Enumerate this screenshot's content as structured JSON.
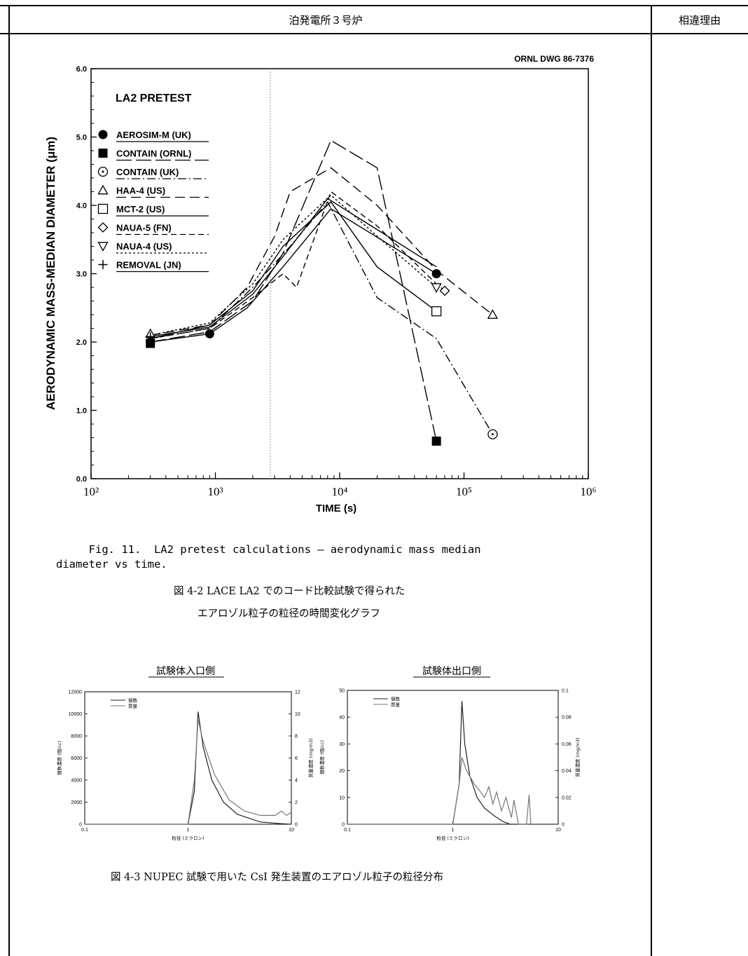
{
  "header": {
    "title": "泊発電所３号炉",
    "reason": "相違理由"
  },
  "fig1": {
    "dwg": "ORNL DWG 86-7376",
    "chart_title": "LA2 PRETEST",
    "ylabel": "AERODYNAMIC MASS-MEDIAN DIAMETER (μm)",
    "xlabel": "TIME (s)",
    "yticks": [
      "0.0",
      "1.0",
      "2.0",
      "3.0",
      "4.0",
      "5.0",
      "6.0"
    ],
    "xticks": [
      "10²",
      "10³",
      "10⁴",
      "10⁵",
      "10⁶"
    ],
    "caption_en_1": "     Fig. 11.  LA2 pretest calculations — aerodynamic mass median",
    "caption_en_2": "diameter vs time.",
    "caption_jp_1": "図 4-2  LACE LA2 でのコード比較試験で得られた",
    "caption_jp_2": "エアロゾル粒子の粒径の時間変化グラフ"
  },
  "fig2": {
    "left_title": "試験体入口側",
    "right_title": "試験体出口側",
    "caption": "図 4-3  NUPEC 試験で用いた CsI 発生装置のエアロゾル粒子の粒径分布"
  },
  "chart_data": [
    {
      "type": "line",
      "title": "LA2 PRETEST",
      "xlabel": "TIME (s)",
      "ylabel": "AERODYNAMIC MASS-MEDIAN DIAMETER (μm)",
      "xscale": "log",
      "xlim": [
        100,
        1000000
      ],
      "ylim": [
        0,
        6
      ],
      "legend": "top-left",
      "series": [
        {
          "name": "AEROSIM-M (UK)",
          "marker": "filled-circle",
          "dash": "",
          "x": [
            300,
            900,
            1800,
            3500,
            8500,
            60000
          ],
          "y": [
            2.0,
            2.12,
            2.5,
            3.1,
            3.95,
            3.0
          ]
        },
        {
          "name": "CONTAIN (ORNL)",
          "marker": "filled-square",
          "dash": "22 6",
          "x": [
            300,
            900,
            2000,
            3500,
            8500,
            20000,
            60000
          ],
          "y": [
            2.0,
            2.15,
            2.6,
            3.3,
            4.95,
            4.55,
            0.55
          ]
        },
        {
          "name": "CONTAIN (UK)",
          "marker": "open-circle",
          "dash": "12 4 2 4",
          "x": [
            300,
            900,
            2000,
            4000,
            8000,
            20000,
            60000,
            170000
          ],
          "y": [
            2.05,
            2.2,
            2.8,
            3.4,
            4.05,
            2.65,
            2.05,
            0.65
          ]
        },
        {
          "name": "HAA-4 (US)",
          "marker": "open-triangle",
          "dash": "14 7",
          "x": [
            300,
            900,
            1800,
            3000,
            4000,
            8500,
            20000,
            60000,
            170000
          ],
          "y": [
            2.1,
            2.25,
            2.8,
            3.55,
            4.2,
            4.55,
            4.0,
            3.05,
            2.4
          ]
        },
        {
          "name": "MCT-2 (US)",
          "marker": "open-square",
          "dash": "",
          "x": [
            300,
            900,
            2000,
            3500,
            8500,
            20000,
            60000
          ],
          "y": [
            2.05,
            2.25,
            2.75,
            3.4,
            4.05,
            3.1,
            2.45
          ]
        },
        {
          "name": "NAUA-5 (FN)",
          "marker": "open-diamond",
          "dash": "8 5",
          "x": [
            300,
            900,
            2000,
            3500,
            4500,
            8500,
            20000,
            60000,
            70000
          ],
          "y": [
            2.05,
            2.2,
            2.65,
            3.0,
            2.8,
            4.2,
            3.7,
            2.85,
            2.75
          ]
        },
        {
          "name": "NAUA-4 (US)",
          "marker": "open-triangle-down",
          "dash": "3 3",
          "x": [
            300,
            900,
            2000,
            3500,
            8500,
            20000,
            60000
          ],
          "y": [
            2.1,
            2.28,
            2.85,
            3.5,
            4.15,
            3.55,
            2.8
          ]
        },
        {
          "name": "REMOVAL (JN)",
          "marker": "plus",
          "dash": "",
          "x": [
            300,
            900,
            2000,
            3500,
            8000,
            60000
          ],
          "y": [
            2.08,
            2.22,
            2.7,
            3.25,
            4.1,
            3.1
          ]
        }
      ]
    },
    {
      "type": "line",
      "title": "試験体入口側",
      "xlabel": "粒径 (ミクロン)",
      "ylabel": "個数濃度 (個/cc)",
      "y2label": "質量濃度 (mg/m3)",
      "xscale": "log",
      "xlim": [
        0.1,
        10
      ],
      "ylim": [
        0,
        12000
      ],
      "y2lim": [
        0,
        12
      ],
      "yticks": [
        "0",
        "2000",
        "4000",
        "6000",
        "8000",
        "10000",
        "12000"
      ],
      "y2ticks": [
        "0",
        "2",
        "4",
        "6",
        "8",
        "10",
        "12"
      ],
      "xticks": [
        "0.1",
        "1",
        "10"
      ],
      "legend": "top-left",
      "series": [
        {
          "name": "個数",
          "axis": "left",
          "x": [
            0.1,
            1.0,
            1.15,
            1.25,
            1.4,
            1.7,
            2.2,
            3.0,
            5.0,
            8.0,
            10.0
          ],
          "y": [
            0,
            0,
            3000,
            10200,
            7000,
            4000,
            2000,
            900,
            200,
            50,
            0
          ]
        },
        {
          "name": "質量",
          "axis": "right",
          "x": [
            0.1,
            1.0,
            1.15,
            1.25,
            1.4,
            1.8,
            2.5,
            3.5,
            5.0,
            7.0,
            8.0,
            9.0,
            10.0
          ],
          "y": [
            0,
            0,
            4,
            9.5,
            7.5,
            4.5,
            2.2,
            1.2,
            0.8,
            0.8,
            1.2,
            0.8,
            1.1
          ]
        }
      ]
    },
    {
      "type": "line",
      "title": "試験体出口側",
      "xlabel": "粒径 (ミクロン)",
      "ylabel": "個数濃度 (個/cc)",
      "y2label": "質量濃度 (mg/m3)",
      "xscale": "log",
      "xlim": [
        0.1,
        10
      ],
      "ylim": [
        0,
        50
      ],
      "y2lim": [
        0,
        0.1
      ],
      "yticks": [
        "0",
        "10",
        "20",
        "30",
        "40",
        "50"
      ],
      "y2ticks": [
        "0",
        "0.02",
        "0.04",
        "0.06",
        "0.08",
        "0.1"
      ],
      "xticks": [
        "0.1",
        "1",
        "10"
      ],
      "legend": "top-left",
      "series": [
        {
          "name": "個数",
          "axis": "left",
          "x": [
            0.1,
            1.0,
            1.15,
            1.22,
            1.3,
            1.45,
            1.7,
            2.0,
            2.5,
            3.0,
            3.5,
            4.0,
            5.0
          ],
          "y": [
            0,
            0,
            15,
            46,
            30,
            18,
            10,
            6,
            3,
            1,
            0,
            0,
            0
          ]
        },
        {
          "name": "質量",
          "axis": "right",
          "x": [
            0.1,
            1.0,
            1.15,
            1.22,
            1.35,
            1.6,
            1.8,
            2.0,
            2.2,
            2.4,
            2.6,
            2.9,
            3.2,
            3.6,
            3.8,
            4.2,
            4.6,
            5.0,
            5.3,
            5.5
          ],
          "y": [
            0,
            0,
            0.03,
            0.05,
            0.04,
            0.03,
            0.025,
            0.02,
            0.028,
            0.015,
            0.024,
            0.01,
            0.02,
            0.005,
            0.018,
            0.0,
            0.0,
            0.0,
            0.022,
            0.0
          ]
        }
      ]
    }
  ]
}
